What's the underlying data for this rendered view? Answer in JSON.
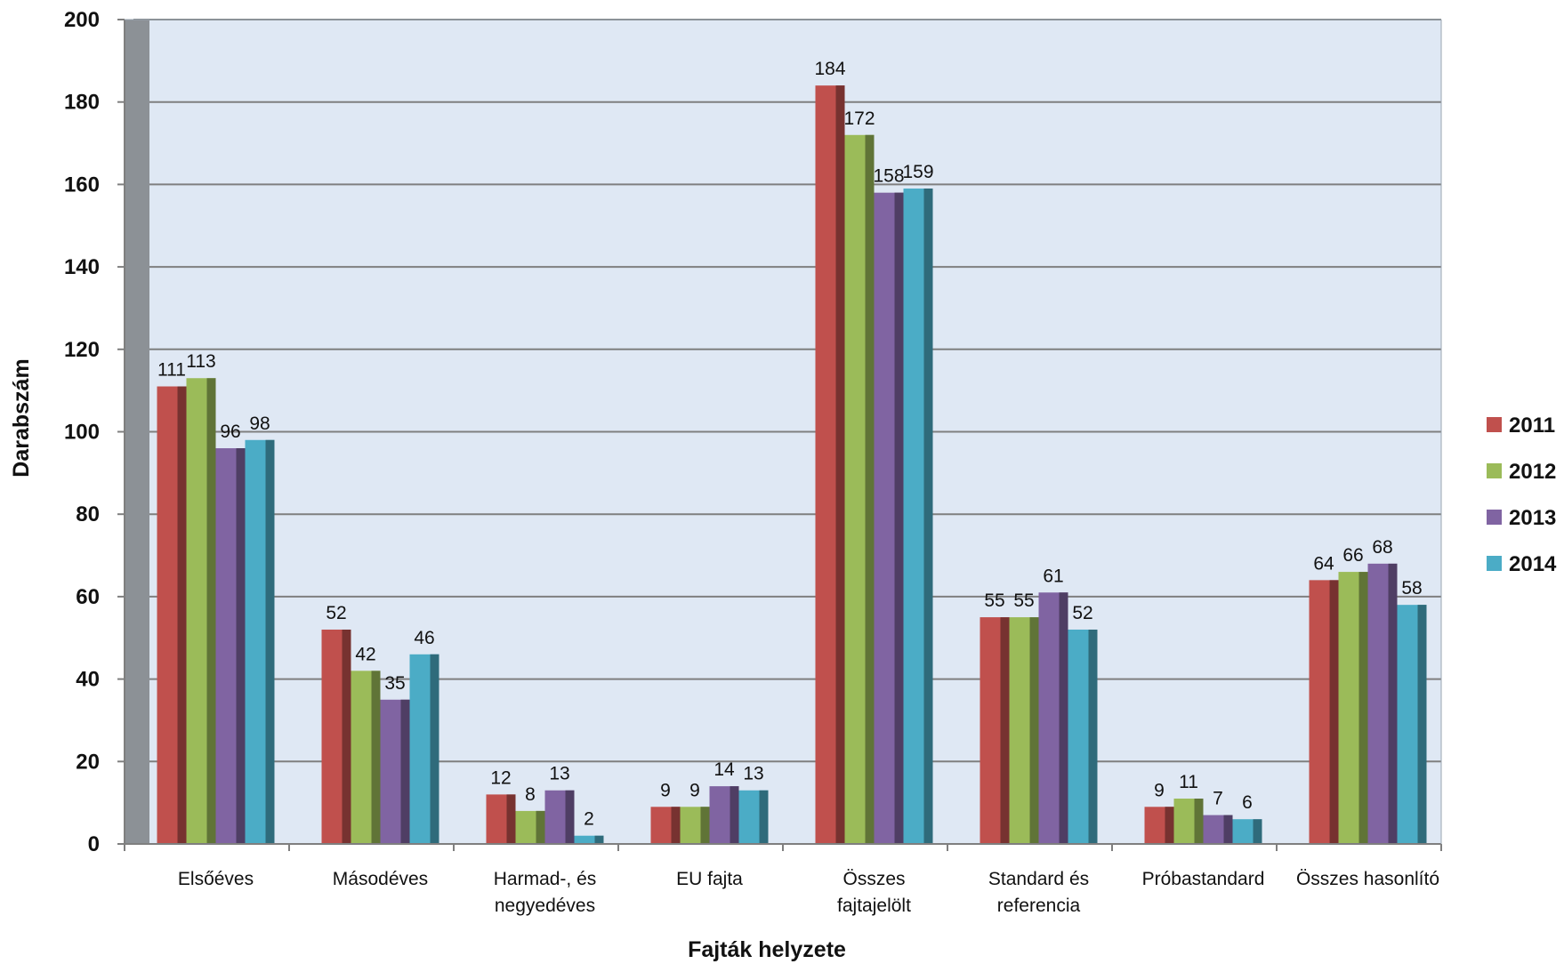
{
  "chart_data": {
    "type": "bar",
    "xlabel": "Fajták helyzete",
    "ylabel": "Darabszám",
    "ylim": [
      0,
      200
    ],
    "yticks": [
      0,
      20,
      40,
      60,
      80,
      100,
      120,
      140,
      160,
      180,
      200
    ],
    "categories": [
      [
        "Elsőéves"
      ],
      [
        "Másodéves"
      ],
      [
        "Harmad-, és",
        "negyedéves"
      ],
      [
        "EU fajta"
      ],
      [
        "Összes",
        "fajtajelölt"
      ],
      [
        "Standard és",
        "referencia"
      ],
      [
        "Próbastandard"
      ],
      [
        "Összes hasonlító"
      ]
    ],
    "series": [
      {
        "name": "2011",
        "color": "#c0504d",
        "values": [
          111,
          52,
          12,
          9,
          184,
          55,
          9,
          64
        ]
      },
      {
        "name": "2012",
        "color": "#9bbb59",
        "values": [
          113,
          42,
          8,
          9,
          172,
          55,
          11,
          66
        ]
      },
      {
        "name": "2013",
        "color": "#8064a2",
        "values": [
          96,
          35,
          13,
          14,
          158,
          61,
          7,
          68
        ]
      },
      {
        "name": "2014",
        "color": "#4bacc6",
        "values": [
          98,
          46,
          2,
          13,
          159,
          52,
          6,
          58
        ]
      }
    ],
    "grid": true,
    "legend": "right",
    "plot_background": "#dfe8f4",
    "wall_color": "#8c9196"
  }
}
